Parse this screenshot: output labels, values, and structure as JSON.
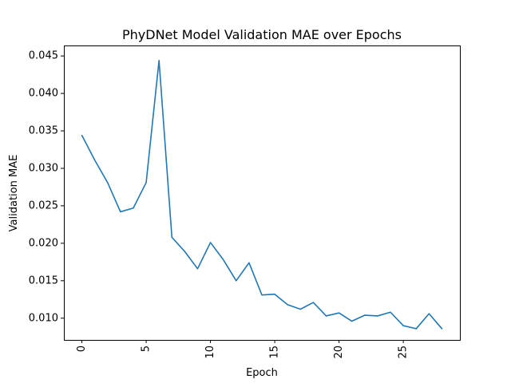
{
  "chart_data": {
    "type": "line",
    "title": "PhyDNet Model Validation MAE over Epochs",
    "xlabel": "Epoch",
    "ylabel": "Validation MAE",
    "xlim": [
      -1.4,
      29.4
    ],
    "ylim": [
      0.0071,
      0.0464
    ],
    "xticks": [
      0,
      5,
      10,
      15,
      20,
      25
    ],
    "xtick_labels": [
      "0",
      "5",
      "10",
      "15",
      "20",
      "25"
    ],
    "xtick_rotation": 90,
    "yticks": [
      0.01,
      0.015,
      0.02,
      0.025,
      0.03,
      0.035,
      0.04,
      0.045
    ],
    "ytick_labels": [
      "0.010",
      "0.015",
      "0.020",
      "0.025",
      "0.030",
      "0.035",
      "0.040",
      "0.045"
    ],
    "grid": false,
    "series": [
      {
        "color": "#1f77b4",
        "x": [
          0,
          1,
          2,
          3,
          4,
          5,
          6,
          7,
          8,
          9,
          10,
          11,
          12,
          13,
          14,
          15,
          16,
          17,
          18,
          19,
          20,
          21,
          22,
          23,
          24,
          25,
          26,
          27,
          28
        ],
        "values": [
          0.0344,
          0.0311,
          0.0281,
          0.0242,
          0.0247,
          0.0281,
          0.0444,
          0.0208,
          0.0189,
          0.0166,
          0.0201,
          0.0178,
          0.015,
          0.0174,
          0.0131,
          0.0132,
          0.0118,
          0.0112,
          0.0121,
          0.0103,
          0.0107,
          0.0096,
          0.0104,
          0.0103,
          0.0108,
          0.009,
          0.0086,
          0.0106,
          0.0086
        ]
      }
    ]
  }
}
